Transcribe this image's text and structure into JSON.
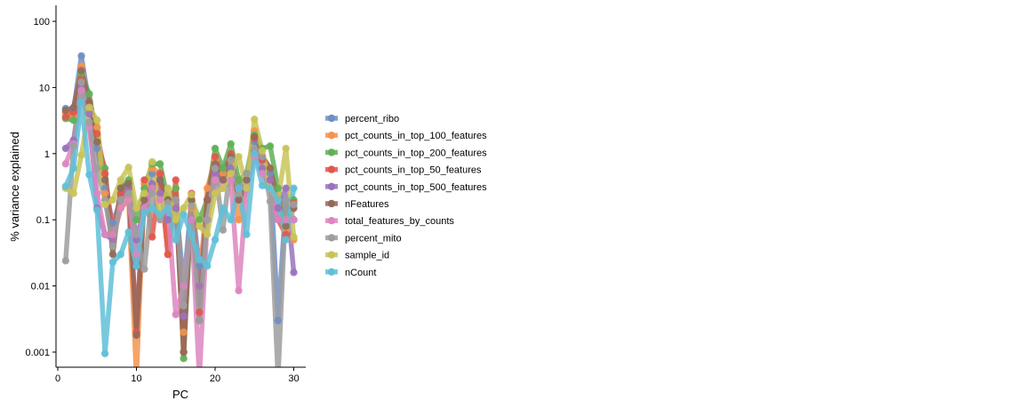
{
  "chart_data": {
    "type": "line",
    "title": "",
    "xlabel": "PC",
    "ylabel": "% variance explained",
    "xlim": [
      0,
      31
    ],
    "ylim": [
      0.0006,
      180
    ],
    "y_scale": "log",
    "x_ticks": [
      0,
      10,
      20,
      30
    ],
    "x_tick_labels": [
      "0",
      "10",
      "20",
      "30"
    ],
    "y_ticks": [
      0.001,
      0.01,
      0.1,
      1,
      10,
      100
    ],
    "y_tick_labels": [
      "0.001",
      "0.01",
      "0.1",
      "1",
      "10",
      "100"
    ],
    "grid": false,
    "legend_position": "right",
    "x": [
      1,
      2,
      3,
      4,
      5,
      6,
      7,
      8,
      9,
      10,
      11,
      12,
      13,
      14,
      15,
      16,
      17,
      18,
      19,
      20,
      21,
      22,
      23,
      24,
      25,
      26,
      27,
      28,
      29,
      30
    ],
    "series": [
      {
        "name": "percent_ribo",
        "color": "#6f8fc4",
        "values": [
          4.8,
          4.5,
          30,
          5.5,
          1.2,
          0.3,
          0.09,
          0.2,
          0.3,
          0.02,
          0.2,
          0.5,
          0.4,
          0.1,
          0.2,
          0.01,
          0.2,
          0.02,
          0.1,
          0.7,
          0.6,
          0.9,
          0.3,
          0.4,
          1.5,
          0.8,
          0.5,
          0.003,
          0.2,
          0.1
        ]
      },
      {
        "name": "pct_counts_in_top_100_features",
        "color": "#f3944c",
        "values": [
          4.2,
          3.8,
          21,
          5,
          2.5,
          0.25,
          0.05,
          0.15,
          0.2,
          0.0004,
          0.35,
          0.6,
          0.5,
          0.03,
          0.3,
          0.002,
          0.15,
          0.01,
          0.3,
          0.8,
          0.5,
          0.8,
          0.1,
          0.3,
          2.2,
          0.9,
          0.6,
          0.2,
          0.07,
          0.05
        ]
      },
      {
        "name": "pct_counts_in_top_200_features",
        "color": "#62b056",
        "values": [
          3.4,
          3.2,
          16,
          8,
          1.5,
          0.6,
          0.04,
          0.3,
          0.4,
          0.1,
          0.3,
          0.7,
          0.7,
          0.2,
          0.3,
          0.0008,
          0.2,
          0.1,
          0.2,
          1.2,
          0.6,
          1.4,
          0.4,
          0.5,
          1.9,
          1.2,
          1.3,
          0.3,
          0.1,
          0.2
        ]
      },
      {
        "name": "pct_counts_in_top_50_features",
        "color": "#e2574e",
        "values": [
          3.6,
          4.2,
          13,
          6,
          2,
          0.5,
          0.06,
          0.25,
          0.3,
          0.002,
          0.4,
          0.055,
          0.5,
          0.03,
          0.4,
          0.001,
          0.25,
          0.004,
          0.2,
          0.9,
          0.4,
          1,
          0.2,
          0.3,
          1.7,
          0.8,
          0.4,
          0.1,
          0.06,
          0.18
        ]
      },
      {
        "name": "pct_counts_in_top_500_features",
        "color": "#9a73bd",
        "values": [
          1.2,
          1.6,
          10,
          4,
          0.15,
          0.06,
          0.05,
          0.2,
          0.3,
          0.05,
          0.15,
          0.35,
          0.25,
          0.1,
          0.15,
          0.0035,
          0.1,
          0.01,
          0.1,
          0.5,
          0.4,
          0.6,
          0.3,
          0.3,
          1.1,
          0.6,
          0.4,
          0.15,
          0.3,
          0.016
        ]
      },
      {
        "name": "nFeatures",
        "color": "#946a5b",
        "values": [
          4.5,
          5,
          18,
          6,
          1.5,
          0.4,
          0.03,
          0.3,
          0.35,
          0.0018,
          0.2,
          0.3,
          0.4,
          0.2,
          0.2,
          0.001,
          0.2,
          0.003,
          0.2,
          0.7,
          0.4,
          0.9,
          0.2,
          0.4,
          1.8,
          0.9,
          0.6,
          0.2,
          0.08,
          0.15
        ]
      },
      {
        "name": "total_features_by_counts",
        "color": "#dd86c0",
        "values": [
          0.7,
          1.4,
          9,
          2.5,
          0.25,
          0.06,
          0.06,
          0.15,
          0.2,
          0.03,
          0.15,
          0.3,
          0.2,
          0.15,
          0.0037,
          0.01,
          0.1,
          0.0004,
          0.1,
          0.4,
          0.3,
          0.4,
          0.0085,
          0.3,
          0.9,
          0.5,
          0.3,
          0.1,
          0.1,
          0.1
        ]
      },
      {
        "name": "percent_mito",
        "color": "#9e9e9e",
        "values": [
          0.024,
          1.3,
          12,
          3,
          0.6,
          0.2,
          0.04,
          0.2,
          0.25,
          0.06,
          0.018,
          0.25,
          0.1,
          0.18,
          0.2,
          0.005,
          0.16,
          0.003,
          0.1,
          0.6,
          0.07,
          0.8,
          0.25,
          0.5,
          1.2,
          0.9,
          0.19,
          0.0004,
          0.2,
          0.17
        ]
      },
      {
        "name": "sample_id",
        "color": "#c9c458",
        "values": [
          0.3,
          0.25,
          0.95,
          5,
          3.2,
          0.17,
          0.2,
          0.4,
          0.62,
          0.15,
          0.25,
          0.75,
          0.12,
          0.3,
          0.1,
          0.15,
          0.24,
          0.08,
          0.06,
          0.25,
          0.3,
          0.5,
          0.9,
          0.3,
          3.3,
          1.1,
          0.3,
          0.2,
          1.2,
          0.055
        ]
      },
      {
        "name": "nCount",
        "color": "#5fc0d8",
        "values": [
          0.32,
          0.6,
          6,
          0.48,
          0.14,
          0.00095,
          0.023,
          0.03,
          0.065,
          0.02,
          0.13,
          0.15,
          0.12,
          0.15,
          0.05,
          0.12,
          0.06,
          0.025,
          0.02,
          0.05,
          0.15,
          0.1,
          0.3,
          0.06,
          1,
          0.33,
          0.3,
          0.2,
          0.05,
          0.3
        ]
      }
    ]
  }
}
